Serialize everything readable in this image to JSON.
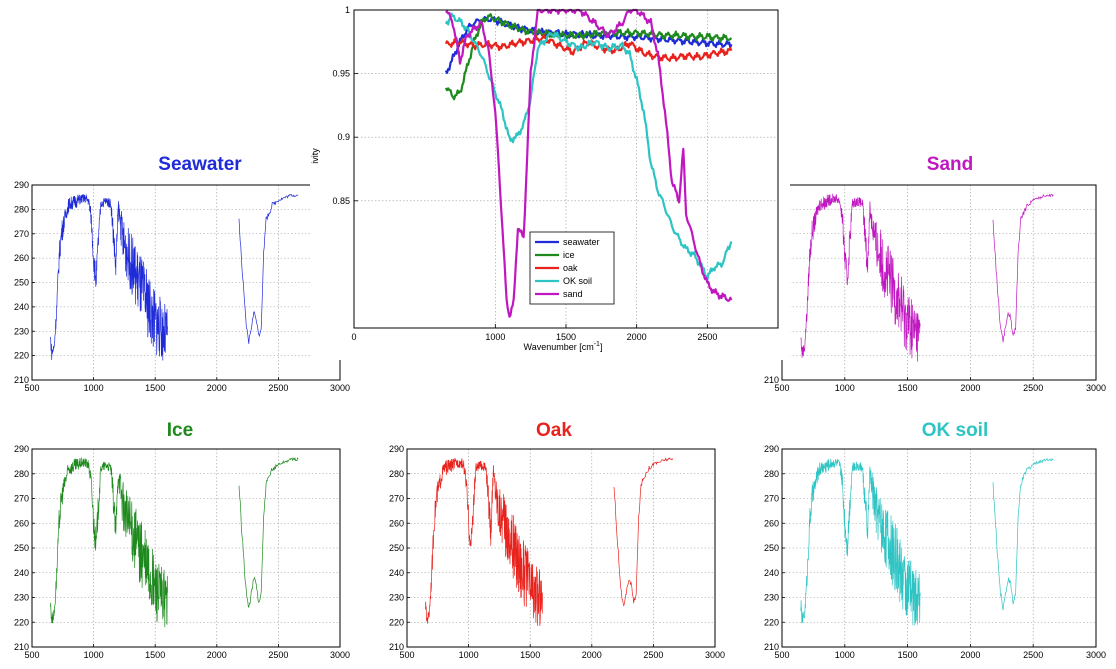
{
  "colors": {
    "seawater": "#1f2bd9",
    "ice": "#1e8a1e",
    "oak": "#e8231e",
    "ok_soil": "#2ec4c4",
    "sand": "#c018c0"
  },
  "chart_data": [
    {
      "id": "emissivity",
      "type": "line",
      "xlabel": "Wavenumber [cm",
      "xlabel_sup": "-1",
      "xlabel_close": "]",
      "ylabel": "ivity",
      "xlim": [
        0,
        3000
      ],
      "ylim": [
        0.75,
        1.0
      ],
      "xticks": [
        0,
        1000,
        1500,
        2000,
        2500
      ],
      "xtick_labels": [
        "0",
        "1000",
        "1500",
        "2000",
        "2500"
      ],
      "yticks": [
        0.85,
        0.9,
        0.95,
        1.0
      ],
      "ytick_labels": [
        "0.85",
        "0.9",
        "0.95",
        "1"
      ],
      "grid": true,
      "legend_position": "center",
      "series": [
        {
          "name": "seawater",
          "color_key": "seawater",
          "x": [
            650,
            700,
            750,
            800,
            850,
            900,
            950,
            1000,
            1100,
            1200,
            1300,
            1400,
            1500,
            1600,
            1700,
            1800,
            1900,
            2000,
            2100,
            2200,
            2300,
            2400,
            2500,
            2600,
            2670
          ],
          "y": [
            0.95,
            0.962,
            0.975,
            0.985,
            0.99,
            0.992,
            0.993,
            0.992,
            0.988,
            0.985,
            0.983,
            0.982,
            0.981,
            0.981,
            0.98,
            0.98,
            0.979,
            0.979,
            0.978,
            0.977,
            0.976,
            0.975,
            0.974,
            0.973,
            0.973
          ]
        },
        {
          "name": "ice",
          "color_key": "ice",
          "x": [
            650,
            700,
            750,
            800,
            850,
            900,
            950,
            1000,
            1100,
            1200,
            1300,
            1400,
            1500,
            1600,
            1700,
            1800,
            1900,
            2000,
            2100,
            2200,
            2300,
            2400,
            2500,
            2600,
            2670
          ],
          "y": [
            0.94,
            0.932,
            0.935,
            0.955,
            0.975,
            0.99,
            0.995,
            0.993,
            0.988,
            0.984,
            0.982,
            0.981,
            0.98,
            0.98,
            0.981,
            0.982,
            0.982,
            0.982,
            0.981,
            0.98,
            0.98,
            0.979,
            0.979,
            0.978,
            0.978
          ]
        },
        {
          "name": "oak",
          "color_key": "oak",
          "x": [
            650,
            750,
            850,
            950,
            1050,
            1150,
            1250,
            1350,
            1450,
            1550,
            1650,
            1750,
            1850,
            1950,
            2050,
            2150,
            2250,
            2350,
            2450,
            2550,
            2670
          ],
          "y": [
            0.973,
            0.975,
            0.972,
            0.973,
            0.971,
            0.974,
            0.976,
            0.978,
            0.972,
            0.967,
            0.975,
            0.97,
            0.968,
            0.974,
            0.966,
            0.963,
            0.962,
            0.964,
            0.963,
            0.966,
            0.968
          ]
        },
        {
          "name": "OK soil",
          "color_key": "ok_soil",
          "x": [
            650,
            700,
            760,
            800,
            850,
            900,
            950,
            1000,
            1050,
            1100,
            1150,
            1200,
            1250,
            1300,
            1400,
            1500,
            1600,
            1700,
            1800,
            1900,
            1950,
            2000,
            2050,
            2100,
            2150,
            2200,
            2250,
            2300,
            2350,
            2400,
            2450,
            2500,
            2550,
            2600,
            2670
          ],
          "y": [
            0.99,
            0.995,
            0.99,
            0.985,
            0.975,
            0.965,
            0.95,
            0.935,
            0.92,
            0.898,
            0.9,
            0.91,
            0.93,
            0.97,
            0.982,
            0.975,
            0.97,
            0.975,
            0.97,
            0.972,
            0.965,
            0.945,
            0.92,
            0.88,
            0.858,
            0.845,
            0.83,
            0.82,
            0.812,
            0.808,
            0.8,
            0.79,
            0.798,
            0.8,
            0.818
          ]
        },
        {
          "name": "sand",
          "color_key": "sand",
          "x": [
            650,
            700,
            750,
            800,
            850,
            900,
            950,
            1000,
            1050,
            1080,
            1100,
            1130,
            1160,
            1200,
            1250,
            1300,
            1400,
            1500,
            1600,
            1700,
            1800,
            1900,
            1950,
            2000,
            2050,
            2100,
            2150,
            2200,
            2250,
            2300,
            2330,
            2350,
            2400,
            2450,
            2500,
            2550,
            2600,
            2670
          ],
          "y": [
            1.0,
            0.99,
            0.96,
            0.98,
            0.985,
            0.99,
            0.97,
            0.92,
            0.83,
            0.77,
            0.76,
            0.77,
            0.83,
            0.82,
            0.95,
            1.0,
            1.0,
            1.0,
            1.0,
            0.99,
            0.98,
            0.99,
            1.0,
            1.0,
            0.995,
            0.99,
            0.965,
            0.92,
            0.865,
            0.85,
            0.89,
            0.84,
            0.82,
            0.8,
            0.785,
            0.778,
            0.775,
            0.772
          ]
        }
      ],
      "legend": [
        "seawater",
        "ice",
        "oak",
        "OK soil",
        "sand"
      ]
    },
    {
      "id": "seawater",
      "type": "line",
      "title": "Seawater",
      "color_key": "seawater",
      "xlim": [
        500,
        3000
      ],
      "ylim": [
        210,
        290
      ]
    },
    {
      "id": "sand",
      "type": "line",
      "title": "Sand",
      "color_key": "sand",
      "xlim": [
        500,
        3000
      ],
      "ylim": [
        210,
        290
      ]
    },
    {
      "id": "ice",
      "type": "line",
      "title": "Ice",
      "color_key": "ice",
      "xlim": [
        500,
        3000
      ],
      "ylim": [
        210,
        290
      ]
    },
    {
      "id": "oak",
      "type": "line",
      "title": "Oak",
      "color_key": "oak",
      "xlim": [
        500,
        3000
      ],
      "ylim": [
        210,
        290
      ]
    },
    {
      "id": "oksoil",
      "type": "line",
      "title": "OK soil",
      "color_key": "ok_soil",
      "xlim": [
        500,
        3000
      ],
      "ylim": [
        210,
        290
      ]
    }
  ],
  "spectrum_axes": {
    "xticks": [
      500,
      1000,
      1500,
      2000,
      2500,
      3000
    ],
    "xtick_labels": [
      "500",
      "1000",
      "1500",
      "2000",
      "2500",
      "3000"
    ],
    "yticks": [
      210,
      220,
      230,
      240,
      250,
      260,
      270,
      280,
      290
    ],
    "ytick_labels": [
      "210",
      "220",
      "230",
      "240",
      "250",
      "260",
      "270",
      "280",
      "290"
    ],
    "grid": true
  }
}
